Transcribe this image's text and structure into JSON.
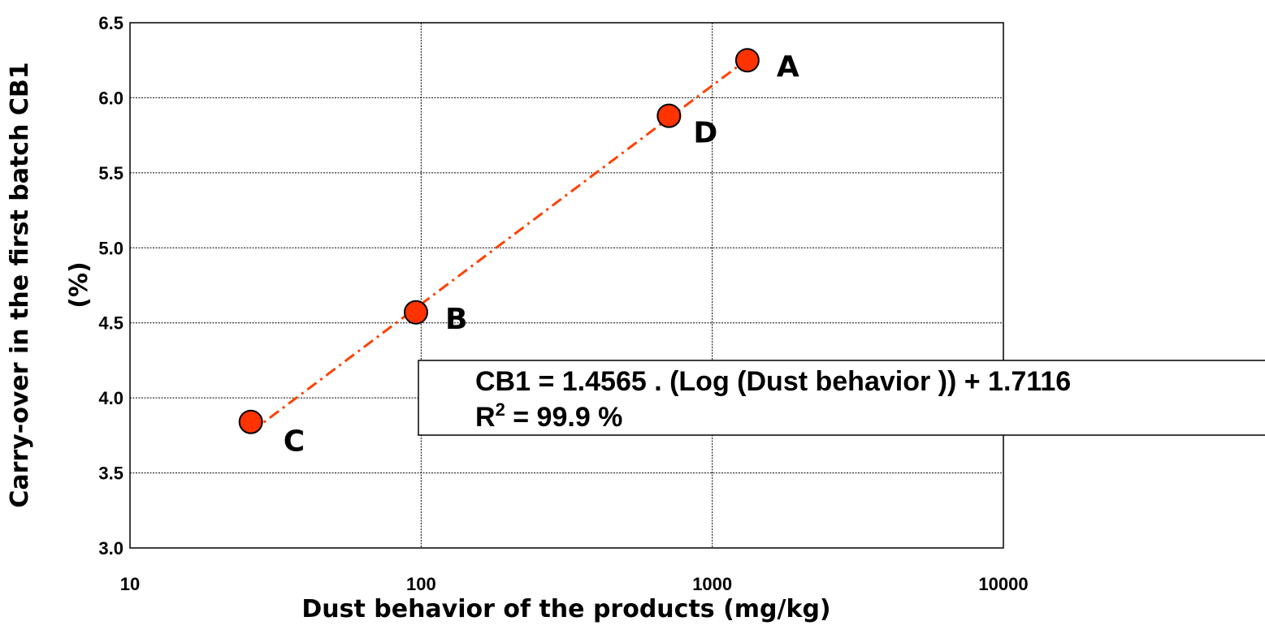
{
  "chart_data": {
    "type": "scatter",
    "title": "",
    "xlabel": "Dust behavior of the products (mg/kg)",
    "ylabel_line1": "Carry-over in the first batch CB1",
    "ylabel_line2": "(%)",
    "x_scale": "log",
    "xlim": [
      10,
      10000
    ],
    "ylim": [
      3.0,
      6.5
    ],
    "x_ticks": [
      "10",
      "100",
      "1000",
      "10000"
    ],
    "y_ticks": [
      "3.0",
      "3.5",
      "4.0",
      "4.5",
      "5.0",
      "5.5",
      "6.0",
      "6.5"
    ],
    "grid": true,
    "points": [
      {
        "label": "A",
        "x": 1320,
        "y": 6.25
      },
      {
        "label": "D",
        "x": 710,
        "y": 5.88
      },
      {
        "label": "B",
        "x": 96,
        "y": 4.57
      },
      {
        "label": "C",
        "x": 26,
        "y": 3.84
      }
    ],
    "trendline": {
      "type": "log",
      "slope": 1.4565,
      "intercept": 1.7116,
      "color": "#ff4000"
    },
    "annotation": {
      "line1": "CB1 = 1.4565 . (Log (Dust behavior )) + 1.7116",
      "line2_main": "R",
      "line2_sup": "2",
      "line2_rest": " = 99.9 %"
    },
    "marker_color": "#ff3300"
  }
}
